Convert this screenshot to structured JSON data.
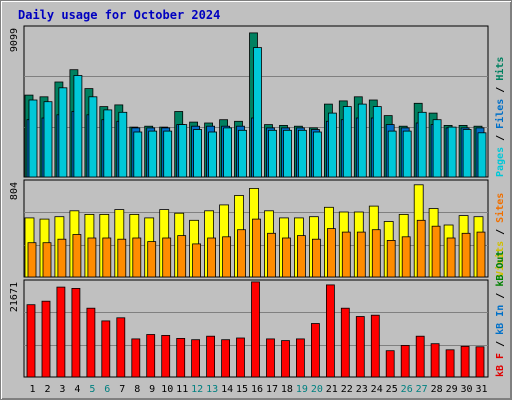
{
  "chart_data": {
    "type": "bar",
    "title": "Daily usage for October 2024",
    "days": [
      "1",
      "2",
      "3",
      "4",
      "5",
      "6",
      "7",
      "8",
      "9",
      "10",
      "11",
      "12",
      "13",
      "14",
      "15",
      "16",
      "17",
      "18",
      "19",
      "20",
      "21",
      "22",
      "23",
      "24",
      "25",
      "26",
      "27",
      "28",
      "29",
      "30",
      "31"
    ],
    "weekend_days": [
      "5",
      "6",
      "12",
      "13",
      "19",
      "20",
      "26",
      "27"
    ],
    "panels": [
      {
        "id": "hits",
        "max_label": "9099",
        "ylim": [
          0,
          9099
        ],
        "legend": [
          {
            "text": "Pages",
            "color": "#00c8d8"
          },
          {
            "text": " / ",
            "color": "#000000"
          },
          {
            "text": "Files",
            "color": "#0070c8"
          },
          {
            "text": " / ",
            "color": "#000000"
          },
          {
            "text": "Hits",
            "color": "#008060"
          }
        ],
        "series": [
          {
            "name": "Hits",
            "color": "#008060",
            "values": [
              5000,
              4900,
              5800,
              6550,
              5400,
              4300,
              4400,
              3050,
              3100,
              3050,
              4000,
              3350,
              3300,
              3500,
              3400,
              8800,
              3200,
              3150,
              3100,
              3000,
              4450,
              4650,
              4900,
              4700,
              3750,
              3100,
              4500,
              3900,
              3150,
              3150,
              3100
            ]
          },
          {
            "name": "Files",
            "color": "#0070c8",
            "values": [
              3500,
              3600,
              3800,
              4000,
              3800,
              3500,
              3400,
              3000,
              3000,
              3000,
              3200,
              3100,
              3100,
              3100,
              3100,
              3600,
              3000,
              3000,
              3000,
              2900,
              3400,
              3500,
              3600,
              3600,
              3200,
              3000,
              3300,
              3200,
              3000,
              3000,
              3000
            ]
          },
          {
            "name": "Pages",
            "color": "#00c8d8",
            "values": [
              4700,
              4600,
              5450,
              6200,
              4900,
              4100,
              3950,
              2750,
              2800,
              2800,
              3200,
              2900,
              2750,
              3000,
              2850,
              7900,
              2850,
              2850,
              2850,
              2750,
              3900,
              4300,
              4450,
              4300,
              2800,
              2800,
              3950,
              3500,
              3050,
              2900,
              2700
            ]
          }
        ]
      },
      {
        "id": "visits",
        "max_label": "804",
        "ylim": [
          0,
          804
        ],
        "legend": [
          {
            "text": "Visits",
            "color": "#d0c000"
          },
          {
            "text": " / ",
            "color": "#000000"
          },
          {
            "text": "Sites",
            "color": "#f07000"
          }
        ],
        "series": [
          {
            "name": "Visits",
            "color": "#ffff00",
            "values": [
              500,
              490,
              510,
              560,
              530,
              530,
              570,
              530,
              500,
              570,
              540,
              480,
              560,
              610,
              690,
              750,
              560,
              500,
              500,
              510,
              590,
              550,
              550,
              600,
              470,
              530,
              780,
              580,
              440,
              520,
              510
            ]
          },
          {
            "name": "Sites",
            "color": "#ff8c00",
            "values": [
              290,
              290,
              320,
              360,
              330,
              330,
              320,
              330,
              300,
              330,
              350,
              280,
              330,
              340,
              400,
              490,
              370,
              330,
              350,
              320,
              410,
              380,
              380,
              400,
              310,
              340,
              480,
              430,
              330,
              370,
              380
            ]
          }
        ]
      },
      {
        "id": "kbytes",
        "max_label": "21671",
        "ylim": [
          0,
          21671
        ],
        "legend": [
          {
            "text": "kB F",
            "color": "#e00000"
          },
          {
            "text": " / ",
            "color": "#000000"
          },
          {
            "text": "kB In",
            "color": "#0070c8"
          },
          {
            "text": " / ",
            "color": "#000000"
          },
          {
            "text": "kB Out",
            "color": "#008000"
          }
        ],
        "series": [
          {
            "name": "kB F",
            "color": "#ff0000",
            "values": [
              16500,
              17300,
              20500,
              20200,
              15700,
              12800,
              13500,
              8700,
              9700,
              9500,
              8800,
              8500,
              9300,
              8500,
              8900,
              21700,
              8700,
              8300,
              8700,
              12200,
              21000,
              15700,
              13800,
              14100,
              6000,
              7200,
              9300,
              7600,
              6200,
              7000,
              6900
            ]
          }
        ]
      }
    ]
  }
}
